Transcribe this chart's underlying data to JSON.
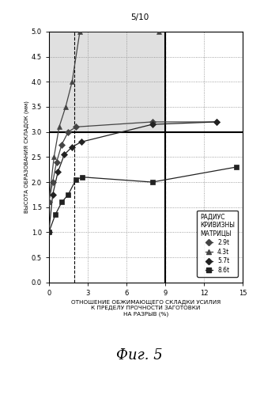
{
  "title_top": "5/10",
  "fig_label": "Фиг. 5",
  "ylabel": "ВЫСОТА ОБРАЗОВАНИЯ СКЛАДОК (мм)",
  "xlabel_line1": "ОТНОШЕНИЕ ОБЖИМАЮЩЕГО СКЛАДКИ УСИЛИЯ",
  "xlabel_line2": "К ПРЕДЕЛУ ПРОЧНОСТИ ЗАГОТОВКИ",
  "xlabel_line3": "НА РАЗРЫВ (%)",
  "xlim": [
    0,
    15.0
  ],
  "ylim": [
    0.0,
    5.0
  ],
  "xticks": [
    0.0,
    3.0,
    6.0,
    9.0,
    12.0,
    15.0
  ],
  "yticks": [
    0.0,
    0.5,
    1.0,
    1.5,
    2.0,
    2.5,
    3.0,
    3.5,
    4.0,
    4.5,
    5.0
  ],
  "hline_y": 3.0,
  "vline_x_solid": 9.0,
  "dashed_vlines": [
    2.0,
    9.0
  ],
  "shaded_x1": 0,
  "shaded_x2": 9.0,
  "shaded_y1": 3.0,
  "shaded_y2": 5.0,
  "legend_title": "РАДИУС\nКРИВИЗНЫ\nМАТРИЦЫ",
  "series": [
    {
      "label": "2.9t",
      "marker": "D",
      "markersize": 4,
      "color": "#444444",
      "x": [
        0.0,
        0.3,
        0.6,
        1.0,
        1.5,
        2.1,
        8.0,
        13.0
      ],
      "y": [
        1.6,
        2.0,
        2.4,
        2.75,
        3.0,
        3.1,
        3.2,
        3.2
      ]
    },
    {
      "label": "4.3t",
      "marker": "^",
      "markersize": 5,
      "color": "#444444",
      "x": [
        0.0,
        0.4,
        0.8,
        1.3,
        1.8,
        2.4,
        8.5
      ],
      "y": [
        1.6,
        2.5,
        3.1,
        3.5,
        4.0,
        5.0,
        5.0
      ]
    },
    {
      "label": "5.7t",
      "marker": "D",
      "markersize": 4,
      "color": "#222222",
      "x": [
        0.0,
        0.3,
        0.7,
        1.2,
        1.8,
        2.5,
        8.0,
        13.0
      ],
      "y": [
        1.0,
        1.75,
        2.2,
        2.55,
        2.7,
        2.8,
        3.15,
        3.2
      ]
    },
    {
      "label": "8.6t",
      "marker": "s",
      "markersize": 4,
      "color": "#222222",
      "x": [
        0.0,
        0.5,
        1.0,
        1.5,
        2.1,
        2.6,
        8.0,
        14.5
      ],
      "y": [
        1.0,
        1.35,
        1.6,
        1.75,
        2.05,
        2.1,
        2.0,
        2.3
      ]
    }
  ]
}
